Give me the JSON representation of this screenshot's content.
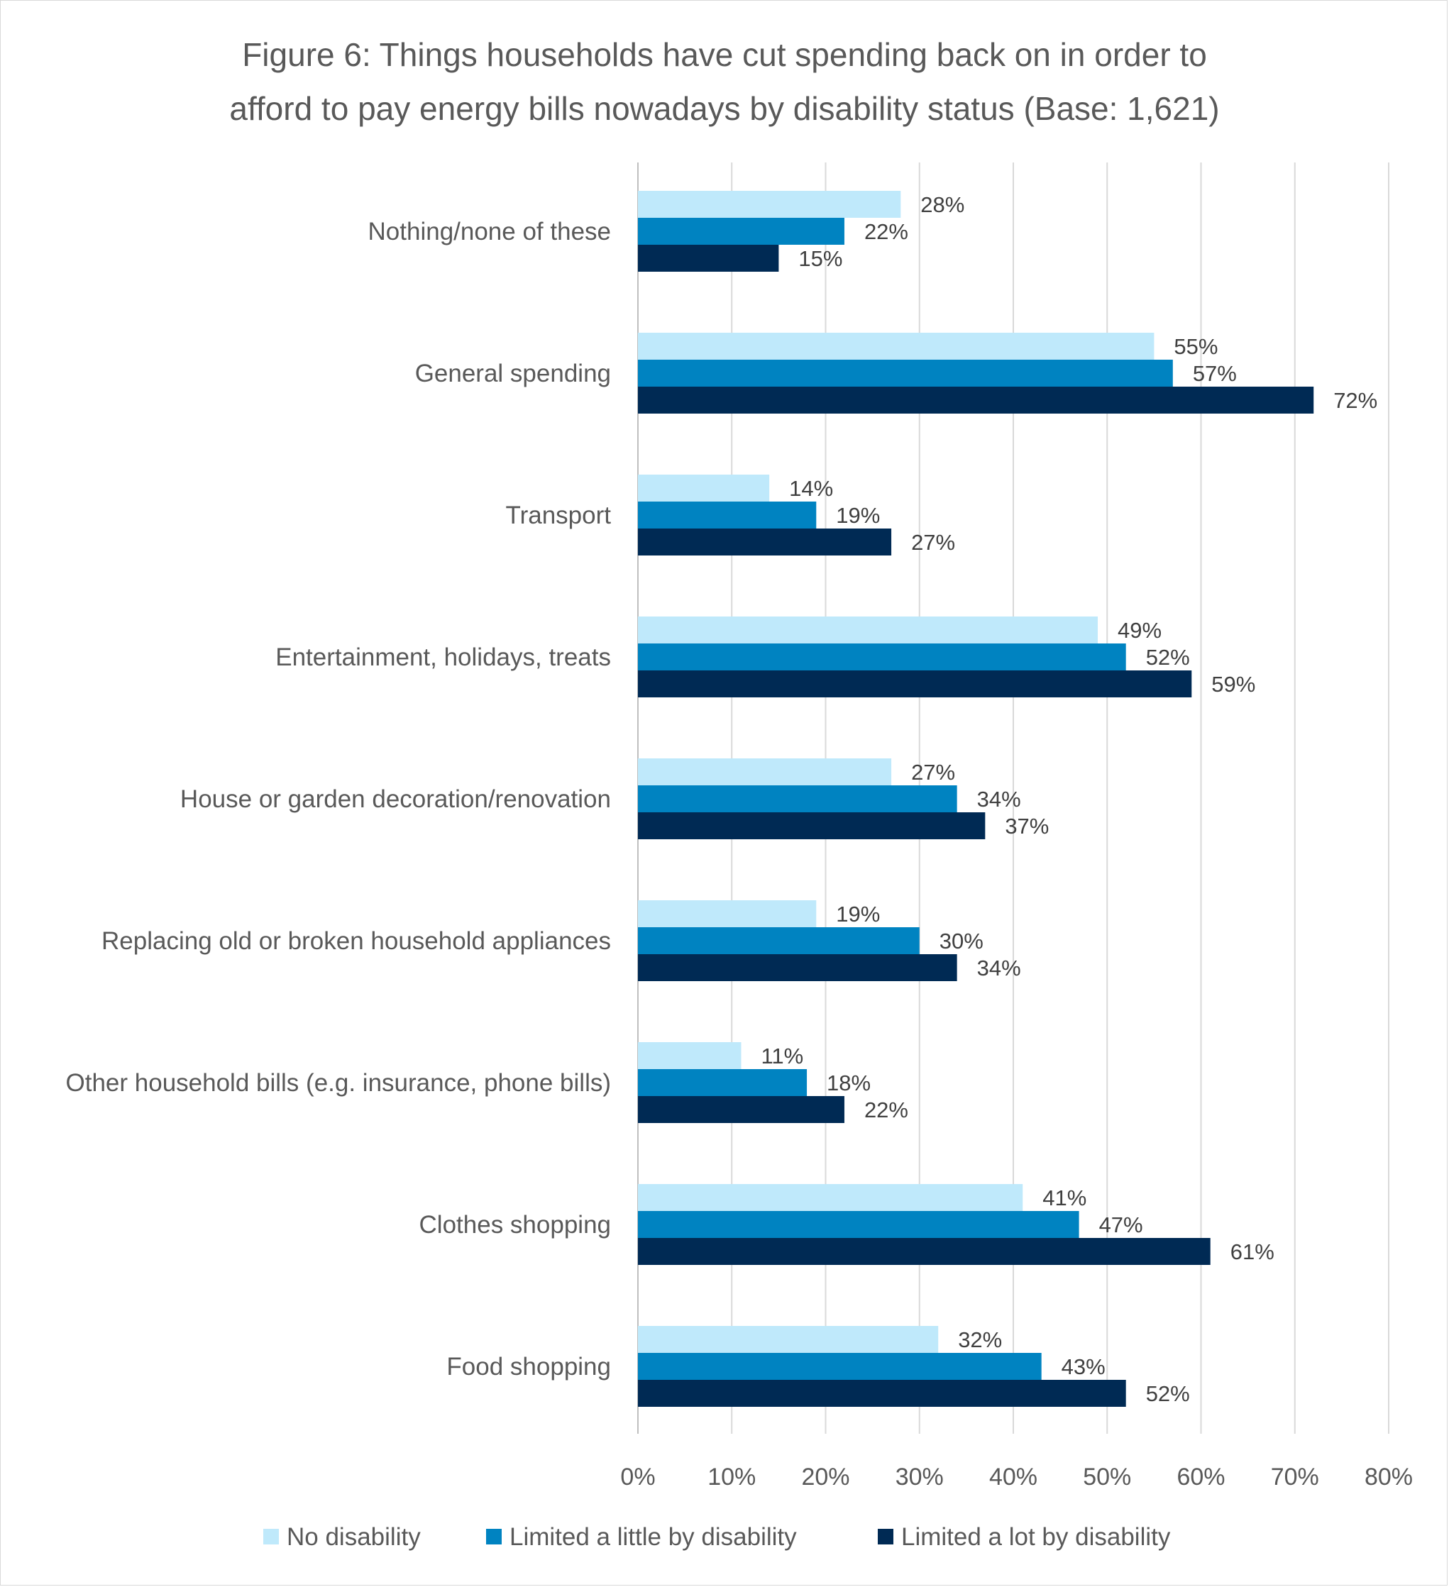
{
  "chart_data": {
    "type": "bar",
    "orientation": "horizontal",
    "title_lines": [
      "Figure 6: Things households have cut spending back on in order to",
      "afford to pay energy bills nowadays by disability status (Base: 1,621)"
    ],
    "categories": [
      "Nothing/none of these",
      "General spending",
      "Transport",
      "Entertainment, holidays, treats",
      "House or garden decoration/renovation",
      "Replacing old or broken household appliances",
      "Other household bills (e.g. insurance, phone bills)",
      "Clothes shopping",
      "Food shopping"
    ],
    "series": [
      {
        "name": "No disability",
        "color": "#bfe9fb",
        "values": [
          28,
          55,
          14,
          49,
          27,
          19,
          11,
          41,
          32
        ]
      },
      {
        "name": "Limited a little by disability",
        "color": "#0083c1",
        "values": [
          22,
          57,
          19,
          52,
          34,
          30,
          18,
          47,
          43
        ]
      },
      {
        "name": "Limited a lot by disability",
        "color": "#002a54",
        "values": [
          15,
          72,
          27,
          59,
          37,
          34,
          22,
          61,
          52
        ]
      }
    ],
    "value_suffix": "%",
    "xlim": [
      0,
      80
    ],
    "xticks": [
      "0%",
      "10%",
      "20%",
      "30%",
      "40%",
      "50%",
      "60%",
      "70%",
      "80%"
    ],
    "grid": true,
    "legend_position": "bottom"
  }
}
